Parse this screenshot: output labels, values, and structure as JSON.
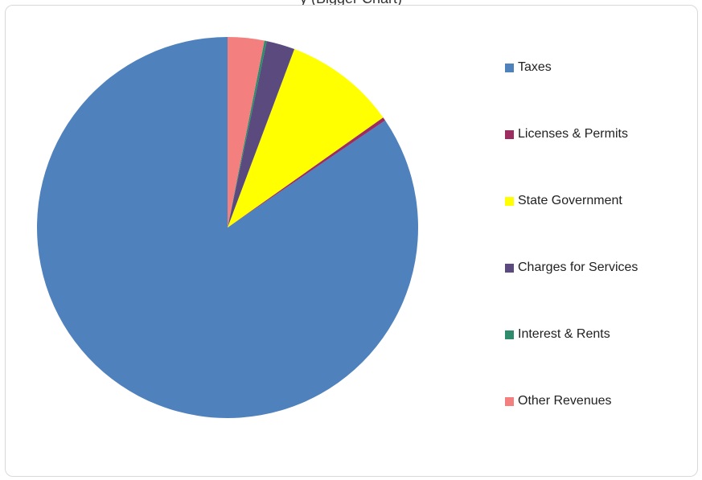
{
  "header": {
    "title_fragment": "y           (Bigger   Chart)"
  },
  "chart_data": {
    "type": "pie",
    "title": "",
    "categories": [
      "Taxes",
      "Licenses & Permits",
      "State Government",
      "Charges for Services",
      "Interest & Rents",
      "Other Revenues"
    ],
    "values": [
      84.5,
      0.3,
      9.5,
      2.4,
      0.2,
      3.1
    ],
    "colors": [
      "#4F81BD",
      "#9B2D60",
      "#FFFF00",
      "#5B4A7E",
      "#2E8B6B",
      "#F47F7F"
    ],
    "legend_position": "right",
    "start_angle_deg": 0,
    "direction": "counterclockwise"
  }
}
